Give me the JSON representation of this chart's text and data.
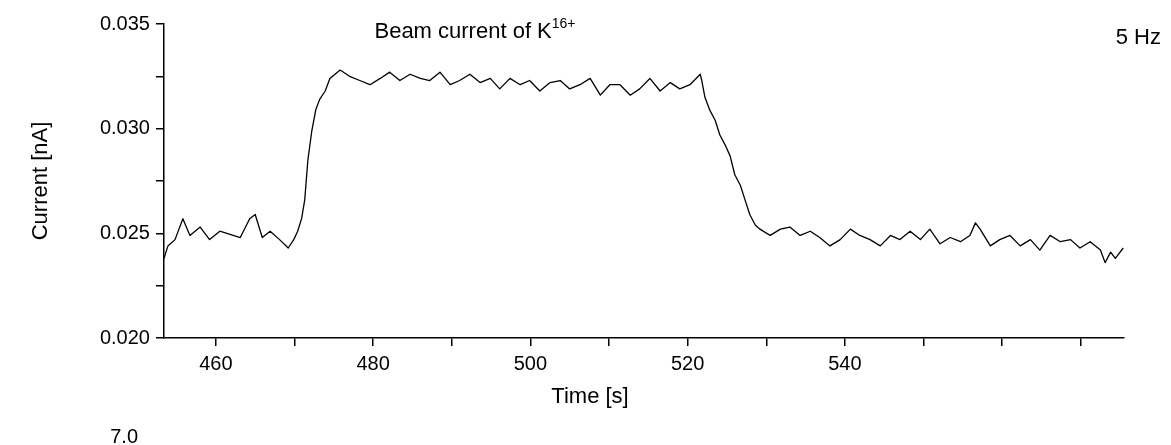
{
  "chart_data": {
    "type": "line",
    "title": "Beam current of K$^{16+}$",
    "xlabel": "Time [s]",
    "ylabel": "Current [nA]",
    "annotations": [
      "5 Hz",
      "7.0"
    ],
    "xlim": [
      453.4,
      575.5
    ],
    "xticks": [
      460,
      {
        "value": 470,
        "label": null
      },
      480,
      {
        "value": 490,
        "label": null
      },
      500,
      {
        "value": 510,
        "label": null
      },
      520,
      {
        "value": 530,
        "label": null
      },
      540,
      {
        "value": 550,
        "label": null
      },
      {
        "value": 560,
        "label": null
      },
      {
        "value": 570,
        "label": null
      }
    ],
    "ylim": [
      0.02,
      0.035
    ],
    "yticks": [
      {
        "value": 0.02,
        "label": "0.020"
      },
      {
        "value": 0.0225,
        "label": null
      },
      0.025,
      {
        "value": 0.0275,
        "label": null
      },
      {
        "value": 0.03,
        "label": "0.030"
      },
      {
        "value": 0.0325,
        "label": null
      },
      0.035
    ],
    "grid": false,
    "legend": false,
    "marker": "none",
    "line_style": "solid",
    "series": [
      {
        "color": "#000000",
        "x": [
          453.4,
          453.9,
          454.8,
          455.8,
          456.7,
          458.0,
          459.2,
          460.5,
          463.1,
          464.3,
          465.0,
          465.9,
          466.9,
          468.1,
          469.2,
          469.9,
          470.4,
          470.9,
          471.3,
          471.7,
          472.2,
          472.7,
          473.2,
          473.9,
          474.5,
          475.8,
          477.0,
          478.3,
          479.6,
          480.9,
          482.1,
          483.4,
          484.7,
          486.0,
          487.2,
          488.5,
          489.8,
          491.0,
          492.3,
          493.6,
          494.9,
          496.1,
          497.4,
          498.7,
          499.9,
          501.2,
          502.5,
          503.8,
          505.0,
          506.3,
          507.6,
          508.9,
          510.1,
          511.4,
          512.7,
          513.9,
          515.2,
          516.5,
          517.8,
          519.0,
          520.3,
          521.6,
          521.8,
          522.2,
          522.8,
          523.5,
          524.1,
          524.8,
          525.4,
          526.0,
          526.7,
          527.3,
          527.9,
          528.6,
          529.2,
          530.5,
          531.8,
          533.0,
          534.3,
          535.6,
          536.8,
          538.1,
          539.4,
          540.7,
          541.9,
          543.2,
          544.5,
          545.8,
          547.0,
          548.3,
          549.6,
          550.8,
          552.1,
          553.4,
          554.7,
          555.9,
          556.6,
          557.2,
          558.5,
          559.7,
          561.0,
          562.3,
          563.6,
          564.8,
          566.1,
          567.4,
          568.7,
          569.9,
          571.2,
          572.5,
          573.1,
          573.8,
          574.4,
          575.4
        ],
        "values": [
          0.0238,
          0.0244,
          0.0247,
          0.0257,
          0.0249,
          0.0253,
          0.0247,
          0.0251,
          0.0248,
          0.0257,
          0.0259,
          0.0248,
          0.0251,
          0.0247,
          0.0243,
          0.0247,
          0.0251,
          0.0257,
          0.0266,
          0.0285,
          0.0299,
          0.0309,
          0.0314,
          0.0318,
          0.0324,
          0.0328,
          0.0325,
          0.0323,
          0.0321,
          0.0324,
          0.0327,
          0.0323,
          0.0326,
          0.0324,
          0.0323,
          0.0327,
          0.0321,
          0.0323,
          0.0326,
          0.0322,
          0.0324,
          0.0319,
          0.0324,
          0.0321,
          0.0323,
          0.0318,
          0.0322,
          0.0323,
          0.0319,
          0.0321,
          0.0324,
          0.0316,
          0.0321,
          0.0321,
          0.0316,
          0.0319,
          0.0324,
          0.0318,
          0.0322,
          0.0319,
          0.0321,
          0.0326,
          0.0323,
          0.0315,
          0.0309,
          0.0304,
          0.0297,
          0.0292,
          0.0287,
          0.0278,
          0.0273,
          0.0266,
          0.0259,
          0.0254,
          0.0252,
          0.0249,
          0.0252,
          0.0253,
          0.0249,
          0.0251,
          0.0248,
          0.0244,
          0.0247,
          0.0252,
          0.0249,
          0.0247,
          0.0244,
          0.0249,
          0.0247,
          0.0251,
          0.0247,
          0.0252,
          0.0245,
          0.0248,
          0.0246,
          0.0249,
          0.0255,
          0.0252,
          0.0244,
          0.0247,
          0.0249,
          0.0244,
          0.0247,
          0.0242,
          0.0249,
          0.0246,
          0.0247,
          0.0243,
          0.0246,
          0.0242,
          0.0236,
          0.0241,
          0.0238,
          0.0243
        ]
      }
    ]
  }
}
